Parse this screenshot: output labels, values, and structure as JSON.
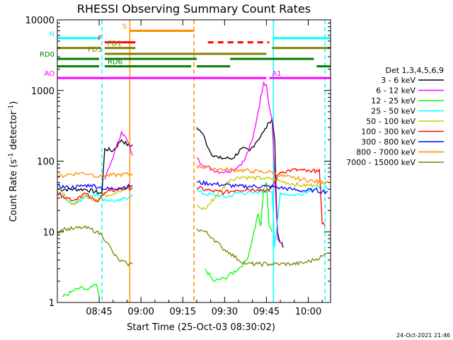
{
  "chart_data": {
    "type": "line",
    "title": "RHESSI Observing Summary Count Rates",
    "xlabel": "Start Time (25-Oct-03 08:30:02)",
    "ylabel_main": "Count Rate (s",
    "ylabel_exp1": "-1",
    "ylabel_mid": " detector",
    "ylabel_exp2": "-1",
    "ylabel_end": ")",
    "x_units": "minutes after 08:30:02",
    "xlim": [
      0,
      98
    ],
    "ylim": [
      1,
      10000
    ],
    "yscale": "log",
    "x_ticks": [
      {
        "t": 15,
        "label": "08:45"
      },
      {
        "t": 30,
        "label": "09:00"
      },
      {
        "t": 45,
        "label": "09:15"
      },
      {
        "t": 60,
        "label": "09:30"
      },
      {
        "t": 75,
        "label": "09:45"
      },
      {
        "t": 90,
        "label": "10:00"
      }
    ],
    "y_ticks": [
      {
        "v": 1,
        "label": "1"
      },
      {
        "v": 10,
        "label": "10"
      },
      {
        "v": 100,
        "label": "100"
      },
      {
        "v": 1000,
        "label": "1000"
      },
      {
        "v": 10000,
        "label": "10000"
      }
    ],
    "legend_title": "Det 1,3,4,5,6,9",
    "legend_placement": "right",
    "series": [
      {
        "name": "3 - 6 keV",
        "color": "#000000",
        "points": [
          [
            0,
            40
          ],
          [
            10,
            40
          ],
          [
            16,
            35
          ],
          [
            17,
            150
          ],
          [
            20,
            140
          ],
          [
            23,
            200
          ],
          [
            26,
            160
          ],
          [
            27,
            170
          ],
          [
            50,
            300
          ],
          [
            52,
            250
          ],
          [
            55,
            130
          ],
          [
            58,
            110
          ],
          [
            63,
            110
          ],
          [
            66,
            150
          ],
          [
            69,
            140
          ],
          [
            71,
            180
          ],
          [
            74,
            260
          ],
          [
            76,
            350
          ],
          [
            77,
            400
          ],
          [
            78,
            200
          ],
          [
            78.5,
            30
          ],
          [
            79,
            10
          ],
          [
            80,
            7
          ],
          [
            81,
            6
          ]
        ]
      },
      {
        "name": "6 - 12 keV",
        "color": "#ff00ff",
        "points": [
          [
            17,
            55
          ],
          [
            19,
            90
          ],
          [
            21,
            150
          ],
          [
            23,
            260
          ],
          [
            25,
            200
          ],
          [
            27,
            120
          ],
          [
            50,
            110
          ],
          [
            53,
            85
          ],
          [
            56,
            75
          ],
          [
            59,
            70
          ],
          [
            63,
            75
          ],
          [
            67,
            100
          ],
          [
            70,
            200
          ],
          [
            72,
            500
          ],
          [
            74,
            1300
          ],
          [
            75,
            1200
          ],
          [
            76,
            600
          ],
          [
            77,
            400
          ],
          [
            79,
            8
          ],
          [
            80,
            7
          ],
          [
            81,
            7
          ]
        ]
      },
      {
        "name": "12 - 25 keV",
        "color": "#00ff00",
        "points": [
          [
            2,
            1.2
          ],
          [
            5,
            1.4
          ],
          [
            8,
            1.6
          ],
          [
            11,
            1.5
          ],
          [
            14,
            1.8
          ],
          [
            15,
            1.2
          ],
          [
            53,
            3
          ],
          [
            56,
            2
          ],
          [
            60,
            2.2
          ],
          [
            65,
            3
          ],
          [
            68,
            4
          ],
          [
            70,
            8
          ],
          [
            72,
            18
          ],
          [
            73,
            12
          ],
          [
            74,
            40
          ],
          [
            75,
            50
          ],
          [
            76,
            12
          ],
          [
            77,
            10
          ]
        ]
      },
      {
        "name": "25 - 50 keV",
        "color": "#00ffff",
        "points": [
          [
            0,
            38
          ],
          [
            2,
            33
          ],
          [
            5,
            25
          ],
          [
            8,
            28
          ],
          [
            11,
            32
          ],
          [
            14,
            35
          ],
          [
            16,
            30
          ],
          [
            18,
            28
          ],
          [
            22,
            27
          ],
          [
            26,
            32
          ],
          [
            27,
            34
          ],
          [
            50,
            38
          ],
          [
            53,
            34
          ],
          [
            57,
            33
          ],
          [
            61,
            31
          ],
          [
            65,
            36
          ],
          [
            70,
            35
          ],
          [
            74,
            38
          ],
          [
            76,
            38
          ],
          [
            77,
            37
          ],
          [
            78,
            6
          ],
          [
            80,
            36
          ],
          [
            84,
            33
          ],
          [
            87,
            34
          ],
          [
            91,
            40
          ],
          [
            94,
            42
          ],
          [
            97,
            40
          ]
        ]
      },
      {
        "name": "50 - 100 keV",
        "color": "#c8c800",
        "points": [
          [
            0,
            42
          ],
          [
            2,
            35
          ],
          [
            4,
            28
          ],
          [
            6,
            24
          ],
          [
            8,
            29
          ],
          [
            10,
            33
          ],
          [
            12,
            30
          ],
          [
            14,
            28
          ],
          [
            16,
            32
          ],
          [
            18,
            33
          ],
          [
            22,
            38
          ],
          [
            27,
            42
          ],
          [
            50,
            23
          ],
          [
            51,
            22
          ],
          [
            53,
            21
          ],
          [
            62,
            55
          ],
          [
            66,
            60
          ],
          [
            70,
            58
          ],
          [
            74,
            57
          ],
          [
            77,
            56
          ],
          [
            80,
            52
          ],
          [
            84,
            48
          ],
          [
            88,
            45
          ],
          [
            92,
            46
          ],
          [
            95,
            52
          ],
          [
            97,
            52
          ]
        ]
      },
      {
        "name": "100 - 300 keV",
        "color": "#ff0000",
        "points": [
          [
            0,
            35
          ],
          [
            2,
            32
          ],
          [
            4,
            30
          ],
          [
            6,
            28
          ],
          [
            8,
            32
          ],
          [
            10,
            35
          ],
          [
            12,
            30
          ],
          [
            14,
            27
          ],
          [
            16,
            33
          ],
          [
            19,
            38
          ],
          [
            22,
            40
          ],
          [
            27,
            42
          ],
          [
            50,
            42
          ],
          [
            55,
            38
          ],
          [
            60,
            36
          ],
          [
            64,
            39
          ],
          [
            68,
            40
          ],
          [
            72,
            40
          ],
          [
            76,
            38
          ],
          [
            80,
            70
          ],
          [
            84,
            75
          ],
          [
            88,
            74
          ],
          [
            91,
            70
          ],
          [
            93,
            75
          ],
          [
            94,
            76
          ],
          [
            95,
            13
          ],
          [
            96,
            12
          ]
        ]
      },
      {
        "name": "300 - 800 keV",
        "color": "#0000ff",
        "points": [
          [
            0,
            45
          ],
          [
            4,
            42
          ],
          [
            8,
            44
          ],
          [
            12,
            46
          ],
          [
            15,
            43
          ],
          [
            17,
            40
          ],
          [
            22,
            42
          ],
          [
            27,
            45
          ],
          [
            50,
            50
          ],
          [
            55,
            48
          ],
          [
            60,
            46
          ],
          [
            65,
            44
          ],
          [
            70,
            44
          ],
          [
            75,
            44
          ],
          [
            80,
            42
          ],
          [
            84,
            40
          ],
          [
            88,
            38
          ],
          [
            92,
            39
          ],
          [
            95,
            37
          ],
          [
            97,
            37
          ]
        ]
      },
      {
        "name": "800 - 7000 keV",
        "color": "#ff8c00",
        "points": [
          [
            0,
            60
          ],
          [
            4,
            65
          ],
          [
            8,
            68
          ],
          [
            12,
            66
          ],
          [
            15,
            60
          ],
          [
            17,
            62
          ],
          [
            22,
            64
          ],
          [
            27,
            66
          ],
          [
            50,
            85
          ],
          [
            55,
            80
          ],
          [
            60,
            76
          ],
          [
            65,
            75
          ],
          [
            70,
            72
          ],
          [
            75,
            70
          ],
          [
            77,
            70
          ],
          [
            80,
            62
          ],
          [
            84,
            58
          ],
          [
            88,
            55
          ],
          [
            92,
            52
          ],
          [
            95,
            50
          ],
          [
            97,
            52
          ]
        ]
      },
      {
        "name": "7000 - 15000 keV",
        "color": "#808000",
        "points": [
          [
            0,
            10
          ],
          [
            3,
            11
          ],
          [
            6,
            11
          ],
          [
            9,
            11.5
          ],
          [
            12,
            11
          ],
          [
            14,
            10
          ],
          [
            16,
            9
          ],
          [
            18,
            7
          ],
          [
            20,
            5
          ],
          [
            22,
            4
          ],
          [
            25,
            3.5
          ],
          [
            27,
            3.5
          ],
          [
            50,
            11
          ],
          [
            53,
            10
          ],
          [
            56,
            8
          ],
          [
            59,
            6
          ],
          [
            62,
            5
          ],
          [
            65,
            4
          ],
          [
            68,
            3.5
          ],
          [
            72,
            3.5
          ],
          [
            76,
            3.5
          ],
          [
            80,
            3.5
          ],
          [
            84,
            3.5
          ],
          [
            88,
            3.6
          ],
          [
            92,
            4
          ],
          [
            95,
            4.5
          ],
          [
            97,
            5
          ]
        ]
      }
    ],
    "orbit_flags": [
      {
        "label": "N",
        "color": "#00ffff",
        "y": 5500,
        "segments": [
          [
            0,
            15.5
          ],
          [
            77.5,
            98
          ]
        ]
      },
      {
        "label": "S",
        "color": "#ff8c00",
        "y": 7000,
        "segments": [
          [
            26,
            49
          ]
        ]
      },
      {
        "label": "F",
        "color": "#ff0000",
        "y": 4800,
        "segments": [
          [
            17,
            28
          ]
        ],
        "dashed_segments": [
          [
            54,
            76
          ]
        ]
      },
      {
        "label": "FD1",
        "color": "#808000",
        "y": 4000,
        "segments": [
          [
            0,
            15.5
          ],
          [
            17,
            28
          ],
          [
            77,
            98
          ]
        ]
      },
      {
        "label": "FD3",
        "color": "#808000",
        "y": 3300,
        "segments": [
          [
            17,
            75
          ]
        ]
      },
      {
        "label": "RD0",
        "color": "#008000",
        "y": 2800,
        "segments": [
          [
            0,
            15
          ],
          [
            17,
            50
          ],
          [
            62,
            92
          ]
        ]
      },
      {
        "label": "RD6",
        "color": "#008000",
        "y": 2200,
        "segments": [
          [
            0,
            15
          ],
          [
            17,
            48
          ],
          [
            50,
            62
          ],
          [
            93,
            98
          ]
        ]
      },
      {
        "label": "AO",
        "color": "#ff00ff",
        "y": 1500,
        "segments": [
          [
            0,
            75
          ]
        ]
      },
      {
        "label": "A1",
        "color": "#ff00ff",
        "y": 1500,
        "segments": [
          [
            76,
            98
          ]
        ]
      }
    ],
    "vertical_markers": [
      {
        "t": 16,
        "color": "#00ffff",
        "style": "dashed"
      },
      {
        "t": 26,
        "color": "#ff8c00",
        "style": "solid"
      },
      {
        "t": 49,
        "color": "#ff8c00",
        "style": "dashed"
      },
      {
        "t": 77.5,
        "color": "#00ffff",
        "style": "solid"
      },
      {
        "t": 96,
        "color": "#00ffff",
        "style": "dashed"
      }
    ]
  },
  "footer": {
    "timestamp": "24-Oct-2021 21:46"
  }
}
